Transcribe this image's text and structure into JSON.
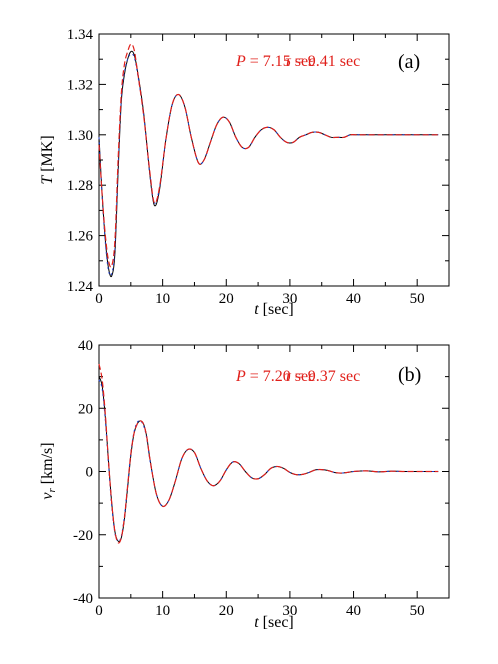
{
  "chart_data": [
    {
      "type": "line",
      "panel_label": "(a)",
      "xlabel_var": "t",
      "xlabel_unit": " [sec]",
      "ylabel_var": "T",
      "ylabel_unit": " [MK]",
      "xlim": [
        0,
        55
      ],
      "ylim": [
        1.24,
        1.34
      ],
      "x_ticks": [
        0,
        10,
        20,
        30,
        40,
        50
      ],
      "x_tick_labels": [
        "0",
        "10",
        "20",
        "30",
        "40",
        "50"
      ],
      "y_ticks": [
        1.24,
        1.26,
        1.28,
        1.3,
        1.32,
        1.34
      ],
      "y_tick_labels": [
        "1.24",
        "1.26",
        "1.28",
        "1.30",
        "1.32",
        "1.34"
      ],
      "annotation": {
        "P_var": "P",
        "P_text": " = 7.15 sec",
        "tau_var": "τ",
        "tau_text": " =  9.41 sec",
        "color": "#e0201b"
      },
      "series": [
        {
          "style": "solid",
          "color": "#000000",
          "x": [
            0,
            0.5,
            1,
            1.5,
            2,
            2.5,
            3,
            3.5,
            4,
            4.5,
            5,
            5.5,
            6,
            7,
            8,
            8.7,
            9.5,
            10.5,
            11.5,
            12.5,
            13.5,
            14.5,
            15.6,
            16.5,
            17.5,
            18.5,
            19.5,
            20.5,
            21.5,
            22.5,
            23.5,
            24.5,
            25.5,
            26.5,
            27.5,
            28.5,
            29.5,
            30.5,
            31.5,
            32.5,
            33.5,
            34.5,
            35.5,
            36.5,
            37.5,
            38.5,
            39.5,
            40.5,
            41.5,
            42.5,
            43.5,
            44.5,
            45.5,
            46.5,
            47.5,
            48.5,
            49.5,
            50.5,
            51.5,
            52.5,
            53.3
          ],
          "y": [
            1.299,
            1.276,
            1.258,
            1.247,
            1.244,
            1.253,
            1.285,
            1.313,
            1.324,
            1.33,
            1.333,
            1.332,
            1.326,
            1.309,
            1.284,
            1.272,
            1.278,
            1.298,
            1.312,
            1.316,
            1.311,
            1.299,
            1.289,
            1.29,
            1.297,
            1.304,
            1.307,
            1.305,
            1.299,
            1.295,
            1.295,
            1.299,
            1.302,
            1.303,
            1.302,
            1.299,
            1.297,
            1.297,
            1.299,
            1.3,
            1.301,
            1.301,
            1.3,
            1.299,
            1.299,
            1.299,
            1.3,
            1.3,
            1.3,
            1.3,
            1.3,
            1.3,
            1.3,
            1.3,
            1.3,
            1.3,
            1.3,
            1.3,
            1.3,
            1.3,
            1.3
          ]
        },
        {
          "style": "dotted",
          "color": "#1f3fd6",
          "x": [
            0,
            0.5,
            1,
            1.5,
            2,
            2.5,
            3,
            3.5,
            4,
            4.5,
            5,
            5.5,
            6,
            7,
            8,
            8.7,
            9.5,
            10.5,
            11.5,
            12.5,
            13.5,
            14.5,
            15.6,
            16.5,
            17.5,
            18.5,
            19.5,
            20.5,
            21.5,
            22.5,
            23.5,
            24.5,
            25.5,
            26.5,
            27.5,
            28.5,
            29.5,
            30.5,
            31.5,
            32.5,
            33.5,
            34.5,
            35.5,
            36.5,
            37.5,
            38.5,
            39.5,
            40.5,
            41.5,
            42.5,
            43.5,
            44.5,
            45.5,
            46.5,
            47.5,
            48.5,
            49.5,
            50.5,
            51.5,
            52.5,
            53.3
          ],
          "y": [
            1.299,
            1.275,
            1.257,
            1.246,
            1.245,
            1.255,
            1.287,
            1.314,
            1.325,
            1.33,
            1.332,
            1.331,
            1.325,
            1.308,
            1.284,
            1.273,
            1.279,
            1.298,
            1.312,
            1.316,
            1.311,
            1.299,
            1.289,
            1.29,
            1.297,
            1.304,
            1.307,
            1.305,
            1.299,
            1.295,
            1.295,
            1.299,
            1.302,
            1.303,
            1.302,
            1.299,
            1.297,
            1.297,
            1.299,
            1.3,
            1.301,
            1.301,
            1.3,
            1.299,
            1.299,
            1.299,
            1.3,
            1.3,
            1.3,
            1.3,
            1.3,
            1.3,
            1.3,
            1.3,
            1.3,
            1.3,
            1.3,
            1.3,
            1.3,
            1.3,
            1.3
          ]
        },
        {
          "style": "dashed",
          "color": "#e0201b",
          "x": [
            0,
            0.5,
            1,
            1.5,
            2,
            2.5,
            3,
            3.5,
            4,
            4.5,
            5,
            5.5,
            6,
            7,
            8,
            8.7,
            9.5,
            10.5,
            11.5,
            12.5,
            13.5,
            14.5,
            15.6,
            16.5,
            17.5,
            18.5,
            19.5,
            20.5,
            21.5,
            22.5,
            23.5,
            24.5,
            25.5,
            26.5,
            27.5,
            28.5,
            29.5,
            30.5,
            31.5,
            32.5,
            33.5,
            34.5,
            35.5,
            36.5,
            37.5,
            38.5,
            39.5,
            40.5,
            41.5,
            42.5,
            43.5,
            44.5,
            45.5,
            46.5,
            47.5,
            48.5,
            49.5,
            50.5,
            51.5,
            52.5,
            53.3
          ],
          "y": [
            1.296,
            1.276,
            1.26,
            1.25,
            1.248,
            1.258,
            1.29,
            1.316,
            1.328,
            1.333,
            1.336,
            1.334,
            1.326,
            1.308,
            1.285,
            1.273,
            1.279,
            1.298,
            1.312,
            1.316,
            1.311,
            1.299,
            1.289,
            1.29,
            1.297,
            1.304,
            1.307,
            1.305,
            1.299,
            1.295,
            1.295,
            1.299,
            1.302,
            1.303,
            1.302,
            1.299,
            1.297,
            1.297,
            1.299,
            1.3,
            1.301,
            1.301,
            1.3,
            1.299,
            1.299,
            1.299,
            1.3,
            1.3,
            1.3,
            1.3,
            1.3,
            1.3,
            1.3,
            1.3,
            1.3,
            1.3,
            1.3,
            1.3,
            1.3,
            1.3,
            1.3
          ]
        }
      ]
    },
    {
      "type": "line",
      "panel_label": "(b)",
      "xlabel_var": "t",
      "xlabel_unit": " [sec]",
      "ylabel_var": "v",
      "ylabel_sub": "r",
      "ylabel_unit": " [km/s]",
      "xlim": [
        0,
        55
      ],
      "ylim": [
        -40,
        40
      ],
      "x_ticks": [
        0,
        10,
        20,
        30,
        40,
        50
      ],
      "x_tick_labels": [
        "0",
        "10",
        "20",
        "30",
        "40",
        "50"
      ],
      "y_ticks": [
        -40,
        -20,
        0,
        20,
        40
      ],
      "y_tick_labels": [
        "-40",
        "-20",
        "0",
        "20",
        "40"
      ],
      "annotation": {
        "P_var": "P",
        "P_text": " = 7.20 sec",
        "tau_var": "τ",
        "tau_text": " =  9.37 sec",
        "color": "#e0201b"
      },
      "series": [
        {
          "style": "solid",
          "color": "#000000",
          "x": [
            0,
            0.5,
            1,
            1.5,
            2,
            2.5,
            3,
            3.5,
            4,
            4.5,
            5,
            5.5,
            6,
            6.5,
            7,
            7.5,
            8,
            9,
            10,
            11,
            12,
            13,
            14,
            15,
            16,
            17,
            18,
            19,
            20,
            21,
            22,
            23,
            24,
            25,
            26,
            27,
            28,
            29,
            30,
            31,
            32,
            33,
            34,
            35,
            36,
            37,
            38,
            39,
            40,
            42,
            44,
            46,
            48,
            50,
            52,
            53.3
          ],
          "y": [
            30,
            27,
            17,
            3,
            -10,
            -19,
            -22,
            -21,
            -15,
            -5,
            5,
            12,
            15,
            16,
            15,
            11,
            4,
            -7,
            -11,
            -9,
            -3,
            4,
            7,
            6,
            1,
            -3,
            -4.5,
            -3,
            0.5,
            3,
            2.5,
            0,
            -2,
            -2.3,
            -1,
            1,
            1.6,
            1,
            -0.3,
            -1,
            -0.9,
            -0.3,
            0.5,
            0.6,
            0.3,
            -0.3,
            -0.5,
            -0.3,
            0,
            0.2,
            -0.1,
            0.1,
            0,
            0,
            0,
            0
          ]
        },
        {
          "style": "dotted",
          "color": "#1f3fd6",
          "x": [
            0,
            0.5,
            1,
            1.5,
            2,
            2.5,
            3,
            3.5,
            4,
            4.5,
            5,
            5.5,
            6,
            6.5,
            7,
            7.5,
            8,
            9,
            10,
            11,
            12,
            13,
            14,
            15,
            16,
            17,
            18,
            19,
            20,
            21,
            22,
            23,
            24,
            25,
            26,
            27,
            28,
            29,
            30,
            31,
            32,
            33,
            34,
            35,
            36,
            37,
            38,
            39,
            40,
            42,
            44,
            46,
            48,
            50,
            52,
            53.3
          ],
          "y": [
            29,
            26,
            16,
            2,
            -11,
            -19.5,
            -22,
            -20.5,
            -14,
            -4,
            6,
            12.5,
            15.5,
            16,
            14.5,
            10.5,
            3.5,
            -7,
            -11,
            -9,
            -3,
            4,
            7,
            6,
            1,
            -3,
            -4.5,
            -3,
            0.5,
            3,
            2.5,
            0,
            -2,
            -2.3,
            -1,
            1,
            1.6,
            1,
            -0.3,
            -1,
            -0.9,
            -0.3,
            0.5,
            0.6,
            0.3,
            -0.3,
            -0.5,
            -0.3,
            0,
            0.2,
            -0.1,
            0.1,
            0,
            0,
            0,
            0
          ]
        },
        {
          "style": "dashed",
          "color": "#e0201b",
          "x": [
            0,
            0.5,
            1,
            1.5,
            2,
            2.5,
            3,
            3.5,
            4,
            4.5,
            5,
            5.5,
            6,
            6.5,
            7,
            7.5,
            8,
            9,
            10,
            11,
            12,
            13,
            14,
            15,
            16,
            17,
            18,
            19,
            20,
            21,
            22,
            23,
            24,
            25,
            26,
            27,
            28,
            29,
            30,
            31,
            32,
            33,
            34,
            35,
            36,
            37,
            38,
            39,
            40,
            42,
            44,
            46,
            48,
            50,
            52,
            53.3
          ],
          "y": [
            34,
            29,
            18,
            3,
            -10,
            -19,
            -22.5,
            -21,
            -14.5,
            -4.5,
            5.5,
            12,
            15,
            16,
            15,
            11,
            4,
            -7,
            -11,
            -9,
            -3,
            4,
            7,
            6,
            1,
            -3,
            -4.5,
            -3,
            0.5,
            3,
            2.5,
            0,
            -2,
            -2.3,
            -1,
            1,
            1.6,
            1,
            -0.3,
            -1,
            -0.9,
            -0.3,
            0.5,
            0.6,
            0.3,
            -0.3,
            -0.5,
            -0.3,
            0,
            0.2,
            -0.1,
            0.1,
            0,
            0,
            0,
            0
          ]
        }
      ]
    }
  ]
}
